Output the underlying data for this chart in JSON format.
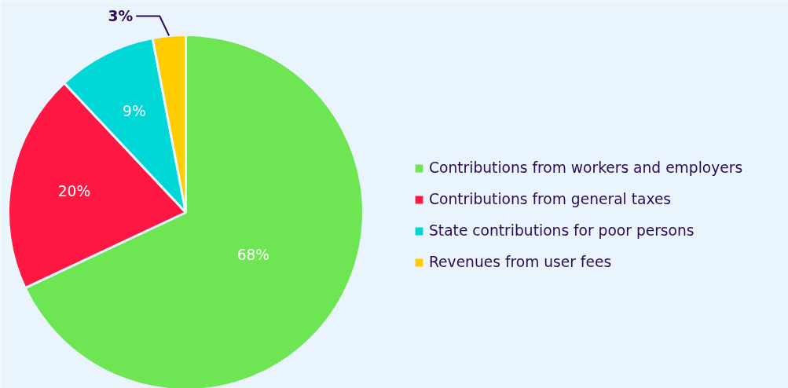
{
  "chart_data": {
    "type": "pie",
    "categories": [
      "Contributions from workers and employers",
      "Contributions from general taxes",
      "State contributions for poor persons",
      "Revenues from user fees"
    ],
    "values": [
      68,
      20,
      9,
      3
    ],
    "colors": [
      "#6ee552",
      "#ff1744",
      "#00d8d8",
      "#ffcc00"
    ],
    "value_labels": [
      "68%",
      "20%",
      "9%",
      "3%"
    ],
    "legend": "right"
  }
}
